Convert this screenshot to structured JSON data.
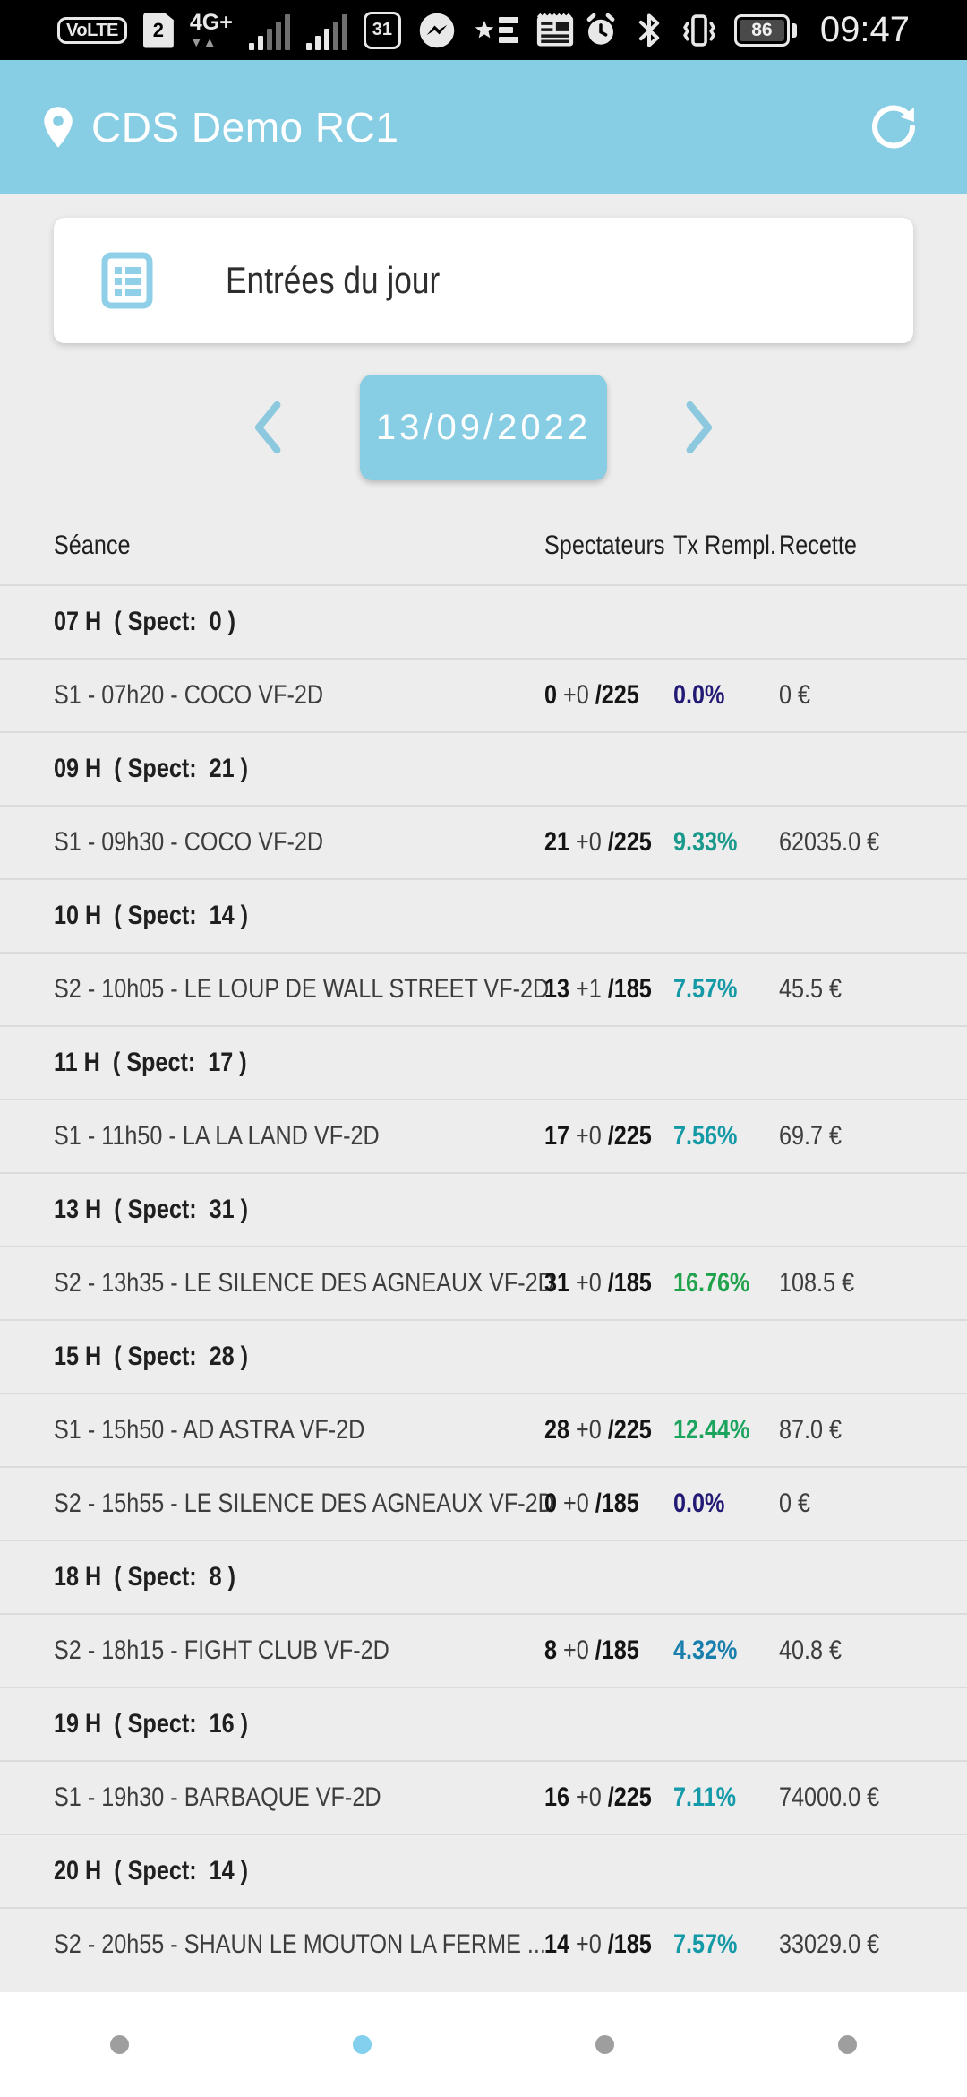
{
  "status_bar": {
    "volte_label": "VoLTE",
    "sim_label": "2",
    "network_label": "4G+",
    "network_arrows": "▼▲",
    "calendar_day": "31",
    "battery_level": "86",
    "time": "09:47",
    "icons_left": [
      "volte-badge",
      "sim2-icon",
      "4g-plus",
      "signal-bars-sim1",
      "signal-bars-sim2",
      "calendar-icon",
      "messenger-icon",
      "lequipe-icon",
      "newspaper-icon"
    ],
    "icons_right": [
      "alarm-icon",
      "bluetooth-icon",
      "vibrate-icon",
      "battery-icon"
    ]
  },
  "header": {
    "title": "CDS Demo RC1"
  },
  "card": {
    "title": "Entrées du jour"
  },
  "date_nav": {
    "date": "13/09/2022"
  },
  "table": {
    "columns": {
      "seance": "Séance",
      "spectators": "Spectateurs",
      "fill_rate": "Tx Rempl.",
      "revenue": "Recette"
    },
    "rows": [
      {
        "type": "group",
        "label": "07 H  ( Spect:  0 )"
      },
      {
        "type": "seance",
        "name": "S1 - 07h20 - COCO VF-2D",
        "count": "0",
        "delta": "+0",
        "capacity": "/225",
        "pct": "0.0%",
        "pct_color": "#221a75",
        "revenue": "0 €"
      },
      {
        "type": "group",
        "label": "09 H  ( Spect:  21 )"
      },
      {
        "type": "seance",
        "name": "S1 - 09h30 - COCO VF-2D",
        "count": "21",
        "delta": "+0",
        "capacity": "/225",
        "pct": "9.33%",
        "pct_color": "#18998b",
        "revenue": "62035.0 €"
      },
      {
        "type": "group",
        "label": "10 H  ( Spect:  14 )"
      },
      {
        "type": "seance",
        "name": "S2 - 10h05 - LE LOUP DE WALL STREET VF-2D",
        "count": "13",
        "delta": "+1",
        "capacity": "/185",
        "pct": "7.57%",
        "pct_color": "#1499a6",
        "revenue": "45.5 €"
      },
      {
        "type": "group",
        "label": "11 H  ( Spect:  17 )"
      },
      {
        "type": "seance",
        "name": "S1 - 11h50 - LA LA LAND VF-2D",
        "count": "17",
        "delta": "+0",
        "capacity": "/225",
        "pct": "7.56%",
        "pct_color": "#1499a6",
        "revenue": "69.7 €"
      },
      {
        "type": "group",
        "label": "13 H  ( Spect:  31 )"
      },
      {
        "type": "seance",
        "name": "S2 - 13h35 - LE SILENCE DES AGNEAUX VF-2D",
        "count": "31",
        "delta": "+0",
        "capacity": "/185",
        "pct": "16.76%",
        "pct_color": "#1fa24b",
        "revenue": "108.5 €"
      },
      {
        "type": "group",
        "label": "15 H  ( Spect:  28 )"
      },
      {
        "type": "seance",
        "name": "S1 - 15h50 - AD ASTRA VF-2D",
        "count": "28",
        "delta": "+0",
        "capacity": "/225",
        "pct": "12.44%",
        "pct_color": "#1ba45e",
        "revenue": "87.0 €"
      },
      {
        "type": "seance",
        "name": "S2 - 15h55 - LE SILENCE DES AGNEAUX VF-2D",
        "count": "0",
        "delta": "+0",
        "capacity": "/185",
        "pct": "0.0%",
        "pct_color": "#221a75",
        "revenue": "0 €"
      },
      {
        "type": "group",
        "label": "18 H  ( Spect:  8 )"
      },
      {
        "type": "seance",
        "name": "S2 - 18h15 - FIGHT CLUB VF-2D",
        "count": "8",
        "delta": "+0",
        "capacity": "/185",
        "pct": "4.32%",
        "pct_color": "#1b7fad",
        "revenue": "40.8 €"
      },
      {
        "type": "group",
        "label": "19 H  ( Spect:  16 )"
      },
      {
        "type": "seance",
        "name": "S1 - 19h30 - BARBAQUE VF-2D",
        "count": "16",
        "delta": "+0",
        "capacity": "/225",
        "pct": "7.11%",
        "pct_color": "#159aa9",
        "revenue": "74000.0 €"
      },
      {
        "type": "group",
        "label": "20 H  ( Spect:  14 )"
      },
      {
        "type": "seance",
        "name": "S2 - 20h55 - SHAUN LE MOUTON LA FERME ...",
        "count": "14",
        "delta": "+0",
        "capacity": "/185",
        "pct": "7.57%",
        "pct_color": "#1499a6",
        "revenue": "33029.0 €"
      }
    ]
  },
  "pagination": {
    "count": 4,
    "active_index": 1
  },
  "colors": {
    "accent_blue": "#87cde3",
    "background": "#ededed",
    "dot_active": "#82cfee",
    "dot_inactive": "#9e9e9e"
  }
}
